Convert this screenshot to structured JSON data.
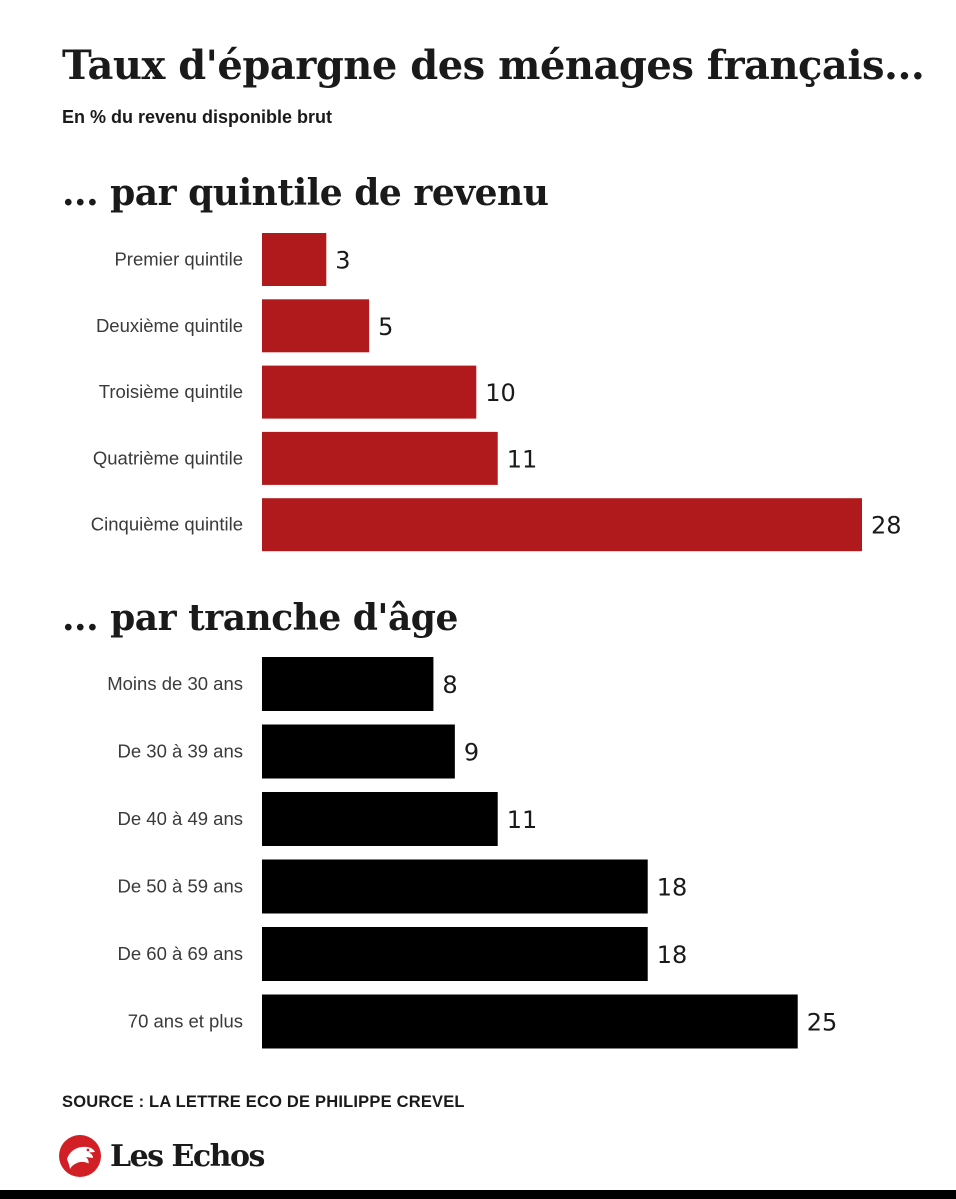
{
  "header": {
    "title": "Taux d'épargne des ménages français...",
    "subtitle": "En % du revenu disponible brut"
  },
  "colors": {
    "income_bar": "#b01a1d",
    "age_bar": "#000000",
    "text": "#1a1a1a",
    "logo_red": "#d21f26"
  },
  "chart_data": [
    {
      "type": "bar",
      "orientation": "horizontal",
      "title": "... par quintile de revenu",
      "categories": [
        "Premier quintile",
        "Deuxième quintile",
        "Troisième quintile",
        "Quatrième quintile",
        "Cinquième quintile"
      ],
      "values": [
        3,
        5,
        10,
        11,
        28
      ],
      "xlim": [
        0,
        28
      ],
      "color": "#b01a1d",
      "grid": false
    },
    {
      "type": "bar",
      "orientation": "horizontal",
      "title": "... par tranche d'âge",
      "categories": [
        "Moins de 30 ans",
        "De 30 à 39 ans",
        "De 40 à 49 ans",
        "De 50 à 59 ans",
        "De 60 à 69 ans",
        "70 ans et plus"
      ],
      "values": [
        8,
        9,
        11,
        18,
        18,
        25
      ],
      "xlim": [
        0,
        28
      ],
      "color": "#000000",
      "grid": false
    }
  ],
  "footer": {
    "source": "SOURCE : LA LETTRE ECO DE PHILIPPE CREVEL",
    "logo_text": "Les Echos",
    "logo_icon": "les-echos-rooster-icon"
  }
}
